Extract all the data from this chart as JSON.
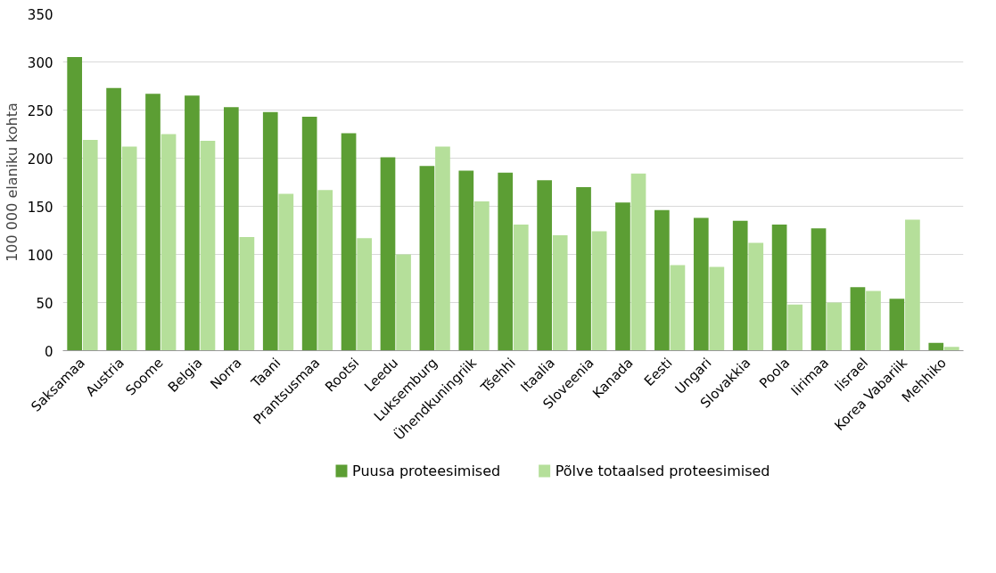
{
  "chart_data": {
    "type": "bar",
    "ylabel": "100 000 elaniku kohta",
    "categories": [
      "Saksamaa",
      "Austria",
      "Soome",
      "Belgia",
      "Norra",
      "Taani",
      "Prantsusmaa",
      "Rootsi",
      "Leedu",
      "Luksemburg",
      "Ühendkuningriik",
      "Tšehhi",
      "Itaalia",
      "Sloveenia",
      "Kanada",
      "Eesti",
      "Ungari",
      "Slovakkia",
      "Poola",
      "Iirimaa",
      "Iisrael",
      "Korea Vabariik",
      "Mehhiko"
    ],
    "series": [
      {
        "name": "Puusa proteesimised",
        "color": "#5c9e34",
        "values": [
          305,
          273,
          267,
          265,
          253,
          248,
          243,
          226,
          201,
          192,
          187,
          185,
          177,
          170,
          154,
          146,
          138,
          135,
          131,
          127,
          66,
          54,
          8
        ]
      },
      {
        "name": "Põlve totaalsed proteesimised",
        "color": "#b5df9a",
        "values": [
          219,
          212,
          225,
          218,
          118,
          163,
          167,
          117,
          100,
          212,
          155,
          131,
          120,
          124,
          184,
          89,
          87,
          112,
          48,
          50,
          62,
          136,
          4
        ]
      }
    ],
    "ylim": [
      0,
      350
    ],
    "yticks": [
      0,
      50,
      100,
      150,
      200,
      250,
      300,
      350
    ],
    "grid": "y",
    "legend": "bottom"
  }
}
